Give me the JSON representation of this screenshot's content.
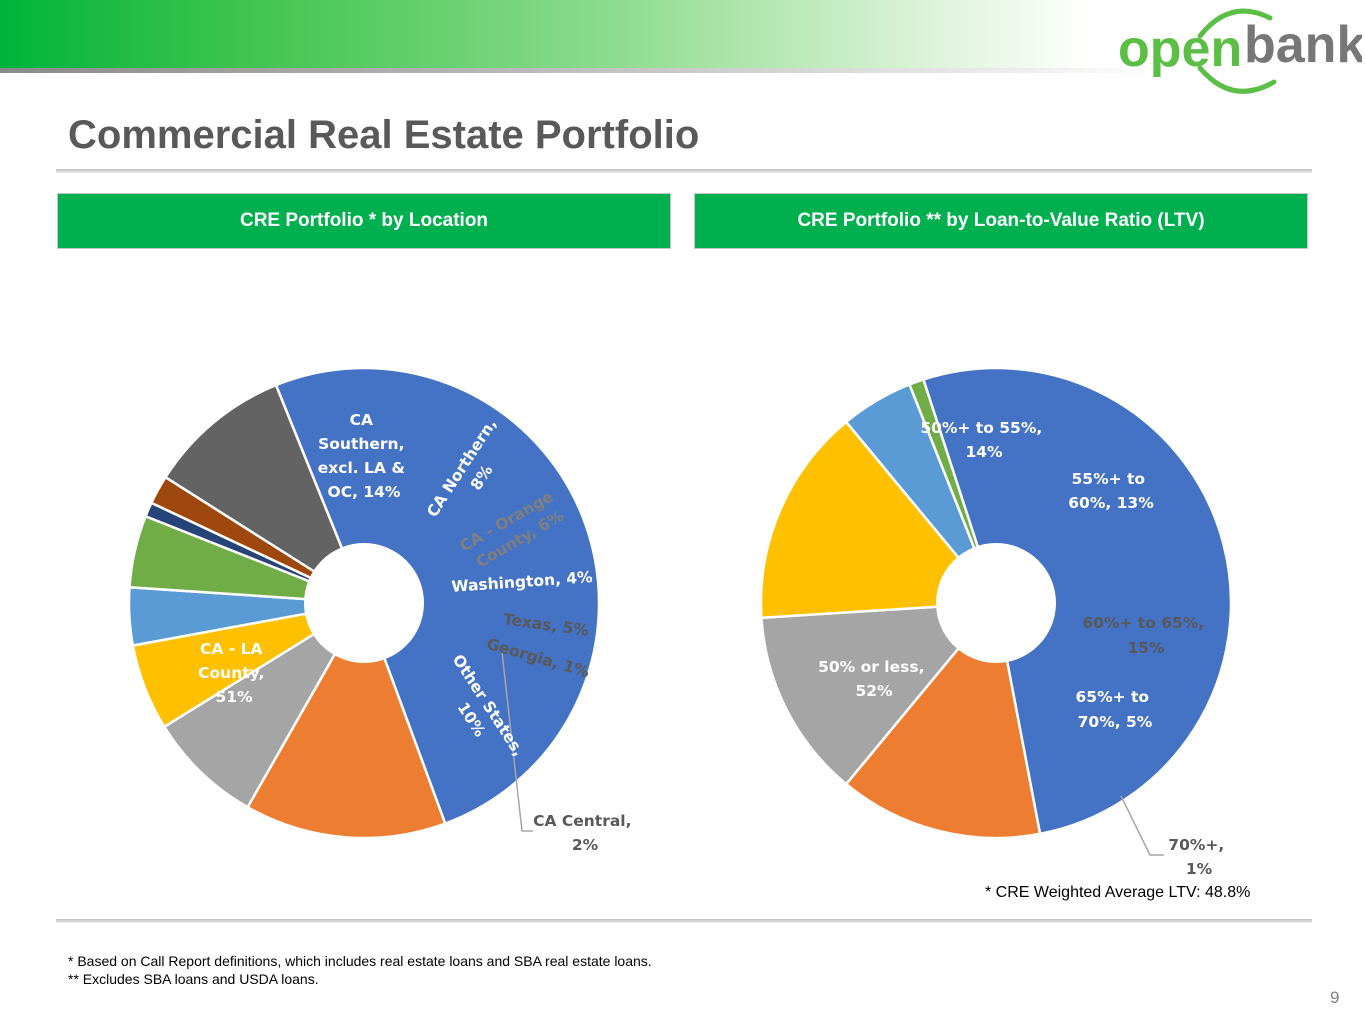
{
  "header": {
    "logo_text_left": "open",
    "logo_text_right": "bank",
    "title": "Commercial Real Estate Portfolio"
  },
  "colors": {
    "brand_green": "#00b04f",
    "logo_green": "#5bbf46",
    "logo_gray": "#777777"
  },
  "panels": {
    "location_title": "CRE Portfolio * by Location",
    "ltv_title": "CRE Portfolio ** by Loan-to-Value Ratio (LTV)"
  },
  "chart_data": [
    {
      "type": "pie",
      "style": "doughnut",
      "title": "CRE Portfolio * by Location",
      "categories": [
        "CA - LA County",
        "CA Southern, excl. LA & OC",
        "CA Northern",
        "CA - Orange County",
        "Washington",
        "Texas",
        "Georgia",
        "CA Central",
        "Other States"
      ],
      "values": [
        51,
        14,
        8,
        6,
        4,
        5,
        1,
        2,
        10
      ],
      "colors": [
        "#4472c4",
        "#ed7d31",
        "#a5a5a5",
        "#ffc000",
        "#5b9bd5",
        "#70ad47",
        "#264478",
        "#9e480e",
        "#636363"
      ],
      "data_labels": [
        [
          "CA - LA",
          "County,",
          "51%"
        ],
        [
          "CA",
          "Southern,",
          "excl. LA &",
          "OC, 14%"
        ],
        [
          "CA Northern,",
          "8%"
        ],
        [
          "CA - Orange",
          "County, 6%"
        ],
        [
          "Washington, 4%"
        ],
        [
          "Texas, 5%"
        ],
        [
          "Georgia, 1%"
        ],
        [
          "CA Central,",
          "2%"
        ],
        [
          "Other States,",
          "10%"
        ]
      ]
    },
    {
      "type": "pie",
      "style": "doughnut",
      "title": "CRE Portfolio ** by Loan-to-Value Ratio (LTV)",
      "categories": [
        "50% or less",
        "50%+ to 55%",
        "55%+ to 60%",
        "60%+ to 65%",
        "65%+ to 70%",
        "70%+"
      ],
      "values": [
        52,
        14,
        13,
        15,
        5,
        1
      ],
      "colors": [
        "#4472c4",
        "#ed7d31",
        "#a5a5a5",
        "#ffc000",
        "#5b9bd5",
        "#70ad47"
      ],
      "data_labels": [
        [
          "50% or less,",
          "52%"
        ],
        [
          "50%+ to 55%,",
          "14%"
        ],
        [
          "55%+ to",
          "60%, 13%"
        ],
        [
          "60%+ to 65%,",
          "15%"
        ],
        [
          "65%+ to",
          "70%, 5%"
        ],
        [
          "70%+,",
          "1%"
        ]
      ]
    }
  ],
  "ltv_note": "* CRE Weighted Average LTV: 48.8%",
  "footnotes": [
    "* Based on Call Report definitions, which includes real estate loans and SBA real estate loans.",
    "** Excludes SBA loans and USDA loans."
  ],
  "page_number": "9"
}
